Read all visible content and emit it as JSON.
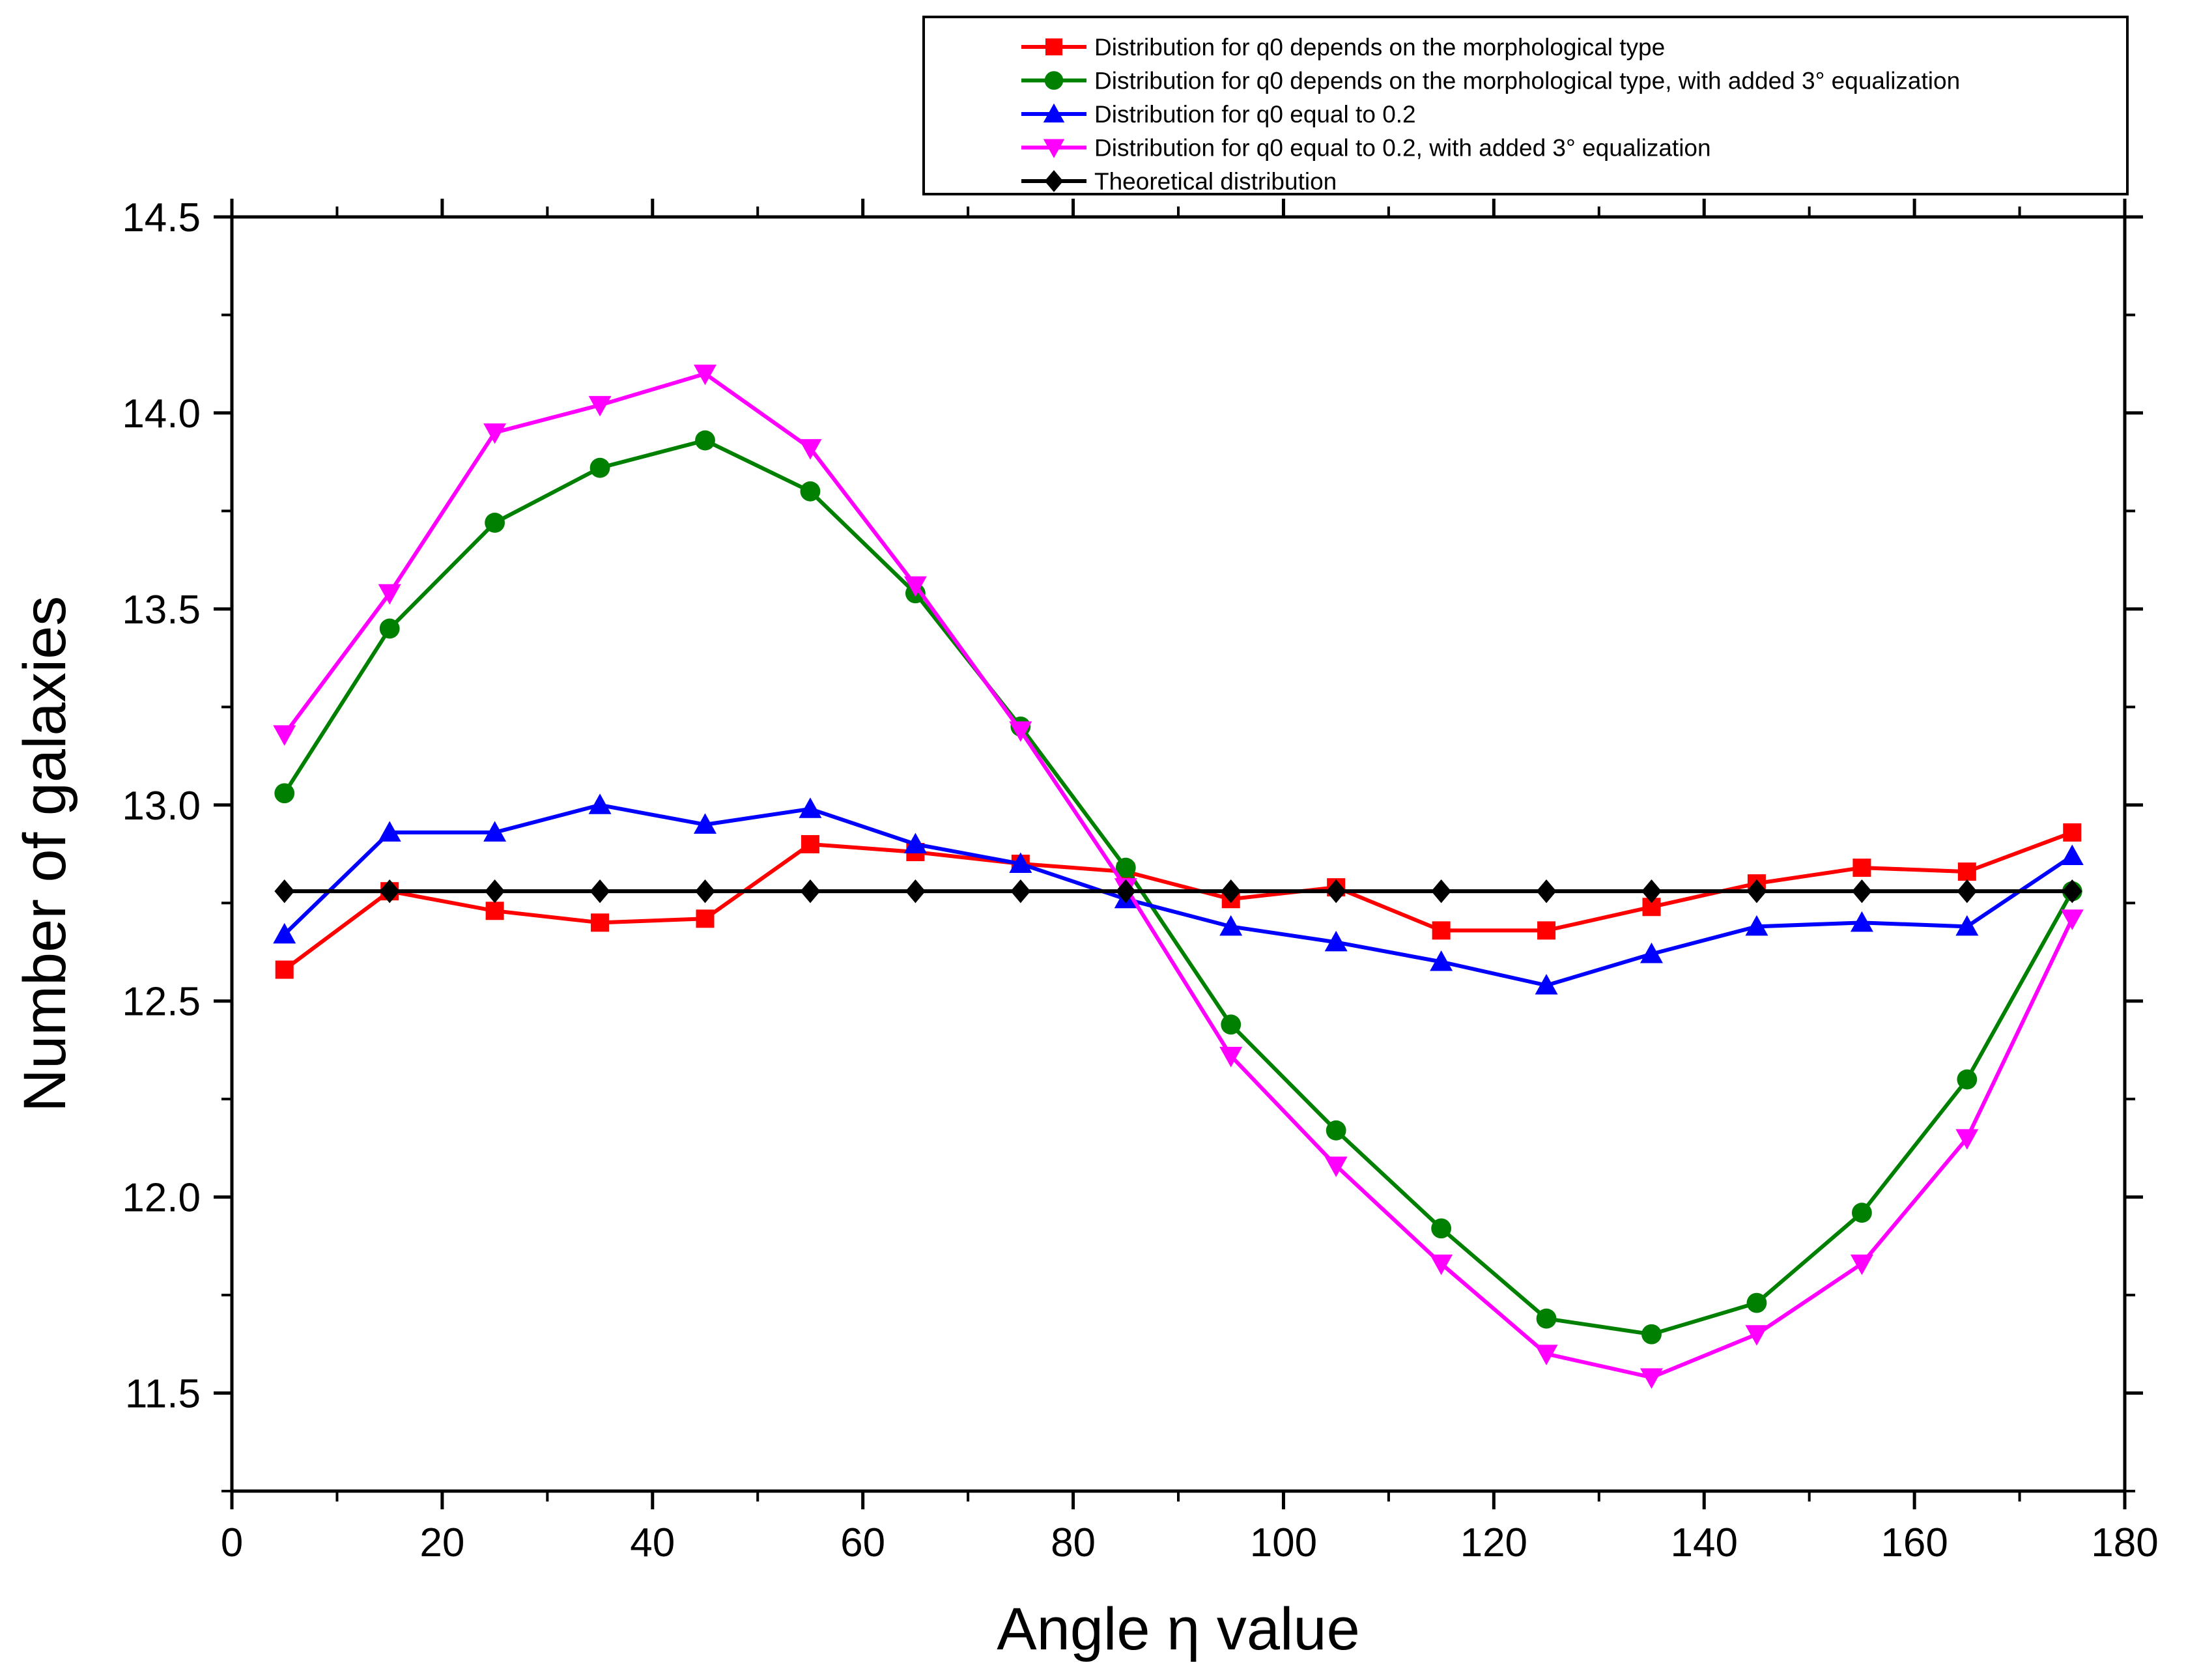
{
  "chart_data": {
    "type": "line",
    "xlabel": "Angle η value",
    "ylabel": "Number of galaxies",
    "xlim": [
      0,
      180
    ],
    "ylim": [
      11.25,
      14.5
    ],
    "xticks": [
      0,
      20,
      40,
      60,
      80,
      100,
      120,
      140,
      160,
      180
    ],
    "xtick_labels": [
      "0",
      "20",
      "40",
      "60",
      "80",
      "100",
      "120",
      "140",
      "160",
      "180"
    ],
    "yticks": [
      11.5,
      12.0,
      12.5,
      13.0,
      13.5,
      14.0,
      14.5
    ],
    "ytick_labels": [
      "11.5",
      "12.0",
      "12.5",
      "13.0",
      "13.5",
      "14.0",
      "14.5"
    ],
    "legend_position": "top-right, outside plot",
    "x": [
      5,
      15,
      25,
      35,
      45,
      55,
      65,
      75,
      85,
      95,
      105,
      115,
      125,
      135,
      145,
      155,
      165,
      175
    ],
    "series": [
      {
        "name": "Distribution for q0 depends on the morphological type",
        "color": "#ff0000",
        "marker": "square",
        "values": [
          12.58,
          12.78,
          12.73,
          12.7,
          12.71,
          12.9,
          12.88,
          12.85,
          12.83,
          12.76,
          12.79,
          12.68,
          12.68,
          12.74,
          12.8,
          12.84,
          12.83,
          12.93
        ]
      },
      {
        "name": "Distribution for q0 depends on the morphological type, with added 3° equalization",
        "color": "#008000",
        "marker": "circle",
        "values": [
          13.03,
          13.45,
          13.72,
          13.86,
          13.93,
          13.8,
          13.54,
          13.2,
          12.84,
          12.44,
          12.17,
          11.92,
          11.69,
          11.65,
          11.73,
          11.96,
          12.3,
          12.78
        ]
      },
      {
        "name": "Distribution for q0 equal to 0.2",
        "color": "#0000ff",
        "marker": "triangle-up",
        "values": [
          12.67,
          12.93,
          12.93,
          13.0,
          12.95,
          12.99,
          12.9,
          12.85,
          12.76,
          12.69,
          12.65,
          12.6,
          12.54,
          12.62,
          12.69,
          12.7,
          12.69,
          12.87
        ]
      },
      {
        "name": "Distribution for q0 equal to 0.2, with added 3° equalization",
        "color": "#ff00ff",
        "marker": "triangle-down",
        "values": [
          13.18,
          13.54,
          13.95,
          14.02,
          14.1,
          13.91,
          13.56,
          13.19,
          12.79,
          12.36,
          12.08,
          11.83,
          11.6,
          11.54,
          11.65,
          11.83,
          12.15,
          12.71
        ]
      },
      {
        "name": "Theoretical distribution",
        "color": "#000000",
        "marker": "diamond",
        "values": [
          12.78,
          12.78,
          12.78,
          12.78,
          12.78,
          12.78,
          12.78,
          12.78,
          12.78,
          12.78,
          12.78,
          12.78,
          12.78,
          12.78,
          12.78,
          12.78,
          12.78,
          12.78
        ]
      }
    ]
  }
}
